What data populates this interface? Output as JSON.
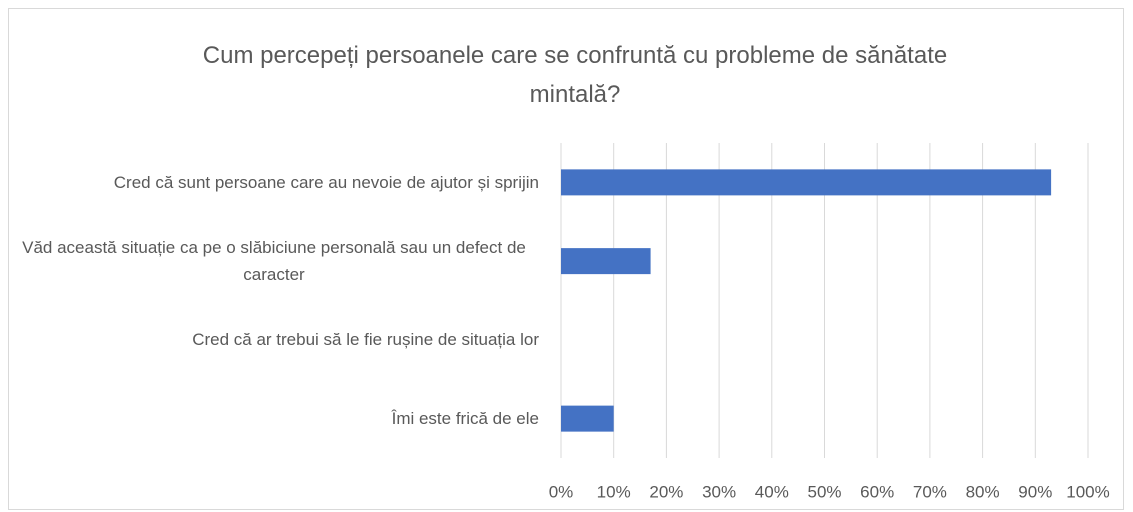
{
  "chart_data": {
    "type": "barh",
    "title": "Cum percepeți persoanele care se confruntă cu probleme de sănătate mintală?",
    "categories": [
      "Cred că sunt persoane care au nevoie de ajutor și sprijin",
      "Văd această situație ca pe o slăbiciune personală sau un defect de caracter",
      "Cred că ar trebui să le fie rușine de situația lor",
      "Îmi este frică de ele"
    ],
    "values": [
      93,
      17,
      0,
      10
    ],
    "color": "#4472c4",
    "xlim": [
      0,
      100
    ],
    "xticks": [
      {
        "value": 0,
        "label": "0%"
      },
      {
        "value": 10,
        "label": "10%"
      },
      {
        "value": 20,
        "label": "20%"
      },
      {
        "value": 30,
        "label": "30%"
      },
      {
        "value": 40,
        "label": "40%"
      },
      {
        "value": 50,
        "label": "50%"
      },
      {
        "value": 60,
        "label": "60%"
      },
      {
        "value": 70,
        "label": "70%"
      },
      {
        "value": 80,
        "label": "80%"
      },
      {
        "value": 90,
        "label": "90%"
      },
      {
        "value": 100,
        "label": "100%"
      }
    ],
    "grid": true
  }
}
